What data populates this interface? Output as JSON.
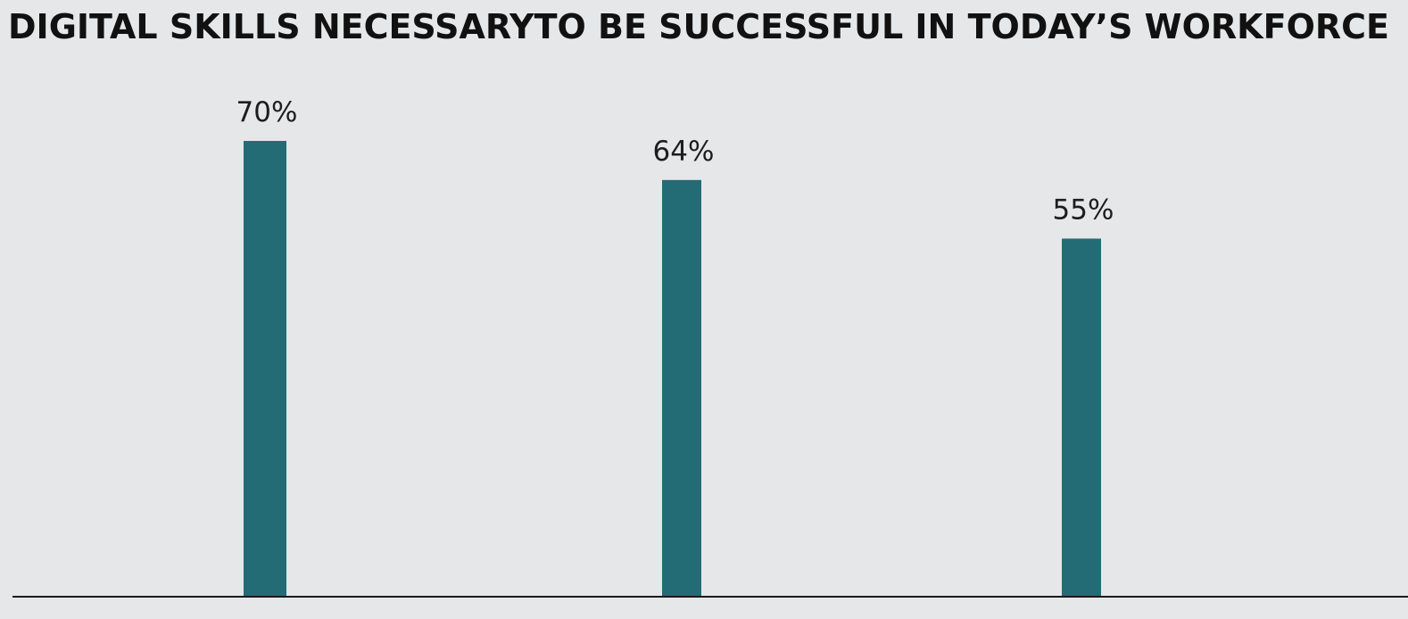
{
  "chart_data": {
    "type": "bar",
    "title": "DIGITAL SKILLS NECESSARYTO BE SUCCESSFUL IN TODAY’S WORKFORCE",
    "categories": [
      "",
      "",
      ""
    ],
    "values": [
      70,
      64,
      55
    ],
    "value_labels": [
      "70%",
      "64%",
      "55%"
    ],
    "ylim": [
      0,
      100
    ],
    "grid": false,
    "bar_color": "#246c75",
    "axis_color": "#1a1a1a",
    "background_color": "#e6e7e9"
  }
}
